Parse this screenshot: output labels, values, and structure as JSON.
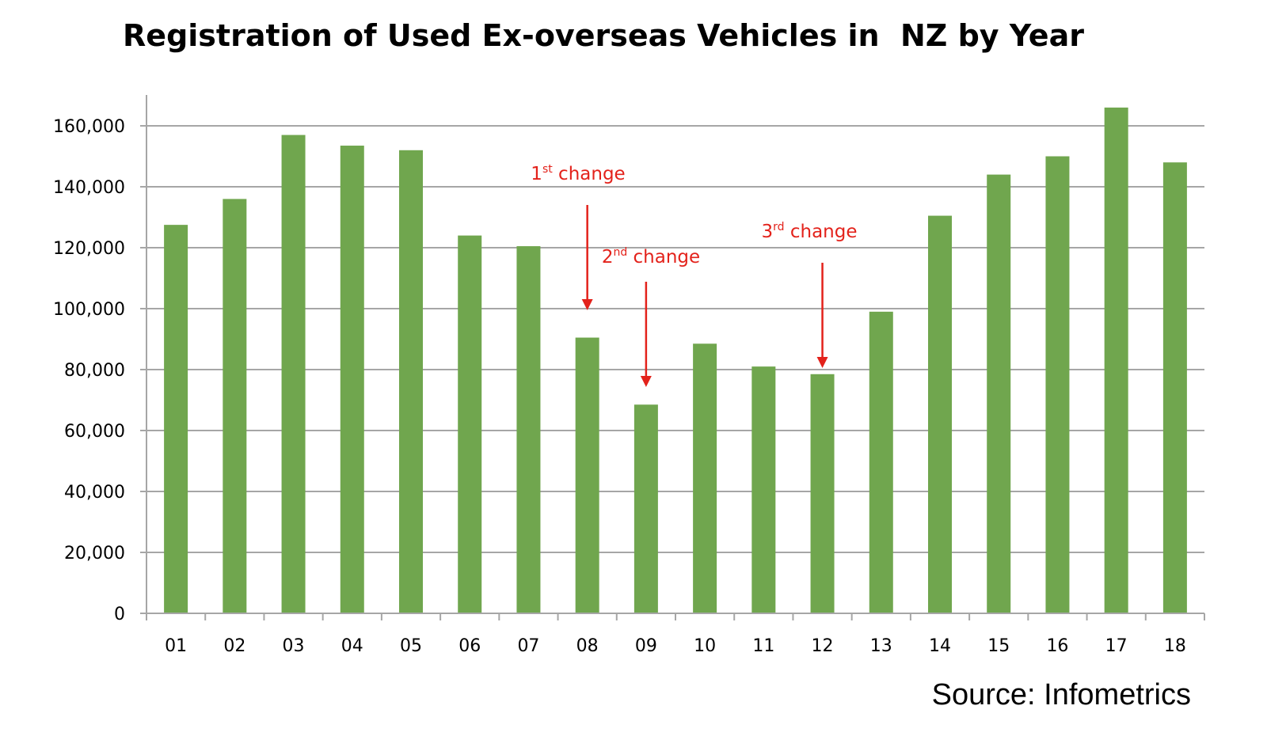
{
  "chart_data": {
    "type": "bar",
    "title": "Registration of Used Ex-overseas Vehicles in  NZ by Year",
    "xlabel": "",
    "ylabel": "",
    "categories": [
      "01",
      "02",
      "03",
      "04",
      "05",
      "06",
      "07",
      "08",
      "09",
      "10",
      "11",
      "12",
      "13",
      "14",
      "15",
      "16",
      "17",
      "18"
    ],
    "values": [
      127500,
      136000,
      157000,
      153500,
      152000,
      124000,
      120500,
      90500,
      68500,
      88500,
      81000,
      78500,
      99000,
      130500,
      144000,
      150000,
      166000,
      148000
    ],
    "ylim": [
      0,
      170000
    ],
    "yticks": [
      0,
      20000,
      40000,
      60000,
      80000,
      100000,
      120000,
      140000,
      160000
    ],
    "ytick_labels": [
      "0",
      "20,000",
      "40,000",
      "60,000",
      "80,000",
      "100,000",
      "120,000",
      "140,000",
      "160,000"
    ],
    "grid": true,
    "bar_color": "#70a64e",
    "grid_color": "#a6a6a6",
    "annotations": [
      {
        "label_main": "1",
        "label_sup": "st",
        "label_rest": " change",
        "target_category": "08",
        "color": "#e3221b"
      },
      {
        "label_main": "2",
        "label_sup": "nd",
        "label_rest": " change",
        "target_category": "09",
        "color": "#e3221b"
      },
      {
        "label_main": "3",
        "label_sup": "rd",
        "label_rest": " change",
        "target_category": "12",
        "color": "#e3221b"
      }
    ],
    "source": "Source: Infometrics"
  }
}
